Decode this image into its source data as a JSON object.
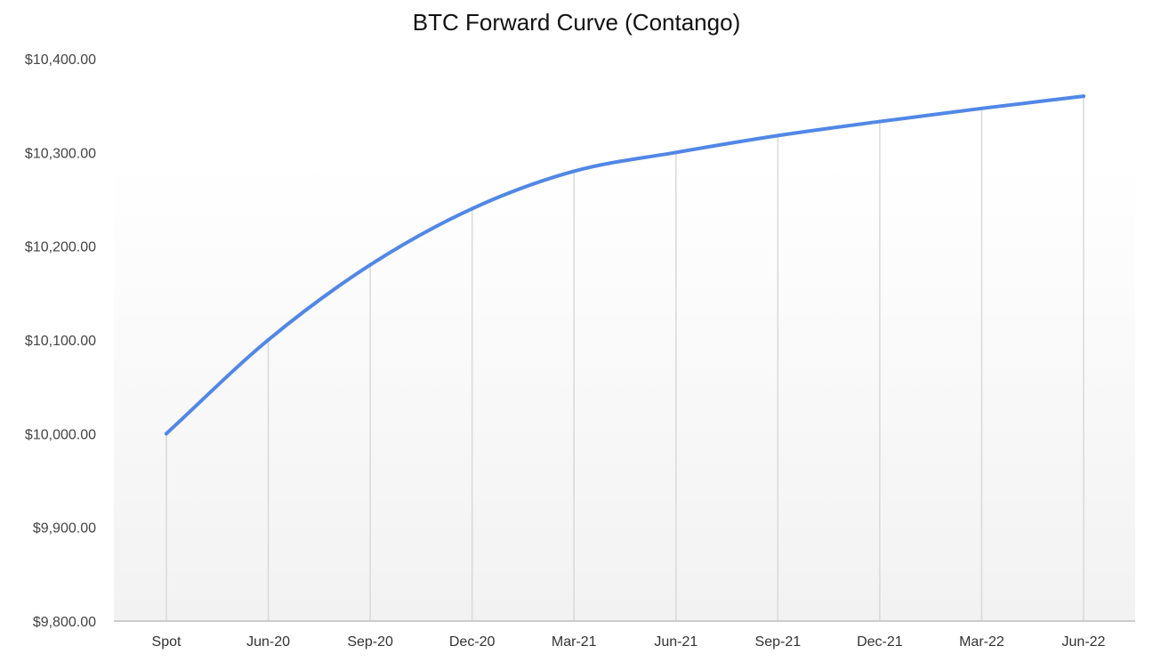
{
  "chart_data": {
    "type": "line",
    "title": "BTC Forward Curve (Contango)",
    "xlabel": "",
    "ylabel": "",
    "categories": [
      "Spot",
      "Jun-20",
      "Sep-20",
      "Dec-20",
      "Mar-21",
      "Jun-21",
      "Sep-21",
      "Dec-21",
      "Mar-22",
      "Jun-22"
    ],
    "series": [
      {
        "values": [
          10000,
          10100,
          10180,
          10240,
          10280,
          10300,
          10318,
          10333,
          10347,
          10360
        ]
      }
    ],
    "ylim": [
      9800,
      10400
    ],
    "yticks": [
      9800,
      9900,
      10000,
      10100,
      10200,
      10300,
      10400
    ],
    "ytick_labels": [
      "$9,800.00",
      "$9,900.00",
      "$10,000.00",
      "$10,100.00",
      "$10,200.00",
      "$10,300.00",
      "$10,400.00"
    ],
    "grid": "vertical",
    "legend": "none",
    "colors": {
      "line": "#5187E6",
      "grid": "#D9D9D9",
      "axis": "#BDBDBD",
      "plot_bg_top": "#FFFFFF",
      "plot_bg_bottom": "#F2F2F2"
    }
  }
}
